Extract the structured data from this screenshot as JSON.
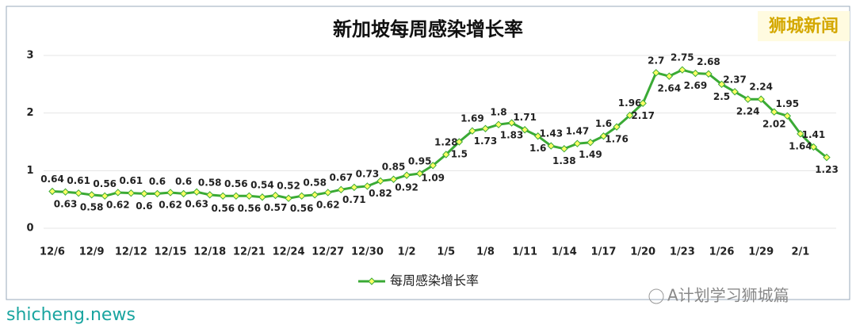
{
  "chart_data": {
    "type": "line",
    "title": "新加坡每周感染增长率",
    "categories": [
      "12/6",
      null,
      null,
      "12/9",
      null,
      null,
      "12/12",
      null,
      null,
      "12/15",
      null,
      null,
      "12/18",
      null,
      null,
      "12/21",
      null,
      null,
      "12/24",
      null,
      null,
      "12/27",
      null,
      null,
      "12/30",
      null,
      null,
      "1/2",
      null,
      null,
      "1/5",
      null,
      null,
      "1/8",
      null,
      null,
      "1/11",
      null,
      null,
      "1/14",
      null,
      null,
      "1/17",
      null,
      null,
      "1/20",
      null,
      null,
      "1/23",
      null,
      null,
      "1/26",
      null,
      null,
      "1/29",
      null,
      null,
      "2/1",
      null,
      null
    ],
    "series": [
      {
        "name": "每周感染增长率",
        "color": "#3aaa35",
        "values": [
          0.64,
          0.63,
          0.61,
          0.58,
          0.56,
          0.62,
          0.61,
          0.6,
          0.6,
          0.62,
          0.6,
          0.63,
          0.58,
          0.56,
          0.56,
          0.56,
          0.54,
          0.57,
          0.52,
          0.56,
          0.58,
          0.62,
          0.67,
          0.71,
          0.73,
          0.82,
          0.85,
          0.92,
          0.95,
          1.09,
          1.28,
          1.5,
          1.69,
          1.73,
          1.8,
          1.83,
          1.71,
          1.6,
          1.43,
          1.38,
          1.47,
          1.49,
          1.6,
          1.76,
          1.96,
          2.17,
          2.7,
          2.64,
          2.75,
          2.69,
          2.68,
          2.5,
          2.37,
          2.24,
          2.24,
          2.02,
          1.95,
          1.64,
          1.41,
          1.23
        ]
      }
    ],
    "ylim": [
      0,
      3
    ],
    "yticks": [
      0,
      1,
      2,
      3
    ],
    "grid": true,
    "legend": "bottom"
  },
  "watermarks": {
    "top_right": "狮城新闻",
    "bottom_left": "shicheng.news",
    "bottom_right": "A计划学习狮城篇"
  }
}
